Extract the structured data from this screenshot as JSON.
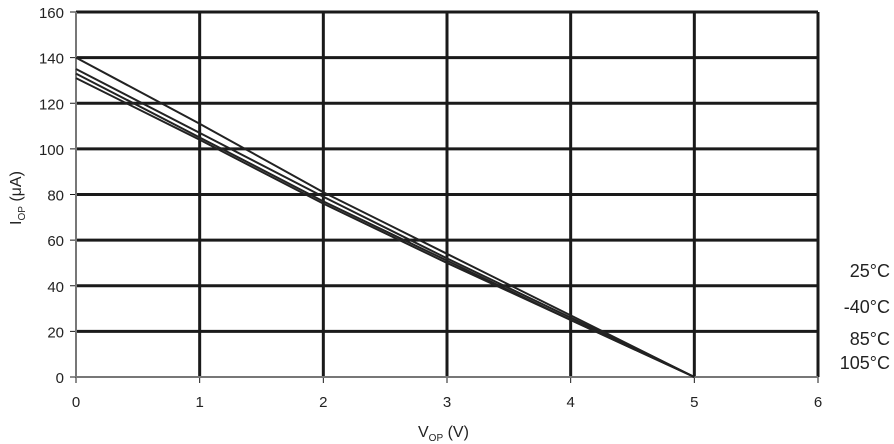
{
  "chart_data": {
    "type": "line",
    "xlabel": {
      "main": "V",
      "sub": "OP",
      "unit": " (V)"
    },
    "ylabel": {
      "main": "I",
      "sub": "OP",
      "unit": " (μA)"
    },
    "xlim": [
      0,
      6
    ],
    "ylim": [
      0,
      160
    ],
    "xticks": [
      "0",
      "1",
      "2",
      "3",
      "4",
      "5",
      "6"
    ],
    "yticks": [
      "0",
      "20",
      "40",
      "60",
      "80",
      "100",
      "120",
      "140",
      "160"
    ],
    "grid": true,
    "x": [
      0,
      1,
      2,
      3,
      4,
      5
    ],
    "series": [
      {
        "name": "25°C",
        "values": [
          140,
          111,
          81,
          54,
          27,
          0
        ]
      },
      {
        "name": "-40°C",
        "values": [
          135,
          107,
          79,
          52,
          26,
          0
        ]
      },
      {
        "name": "85°C",
        "values": [
          133,
          105,
          77,
          51,
          25,
          0
        ]
      },
      {
        "name": "105°C",
        "values": [
          131,
          104,
          76,
          50,
          25,
          0
        ]
      }
    ],
    "line_color": "#222222"
  }
}
